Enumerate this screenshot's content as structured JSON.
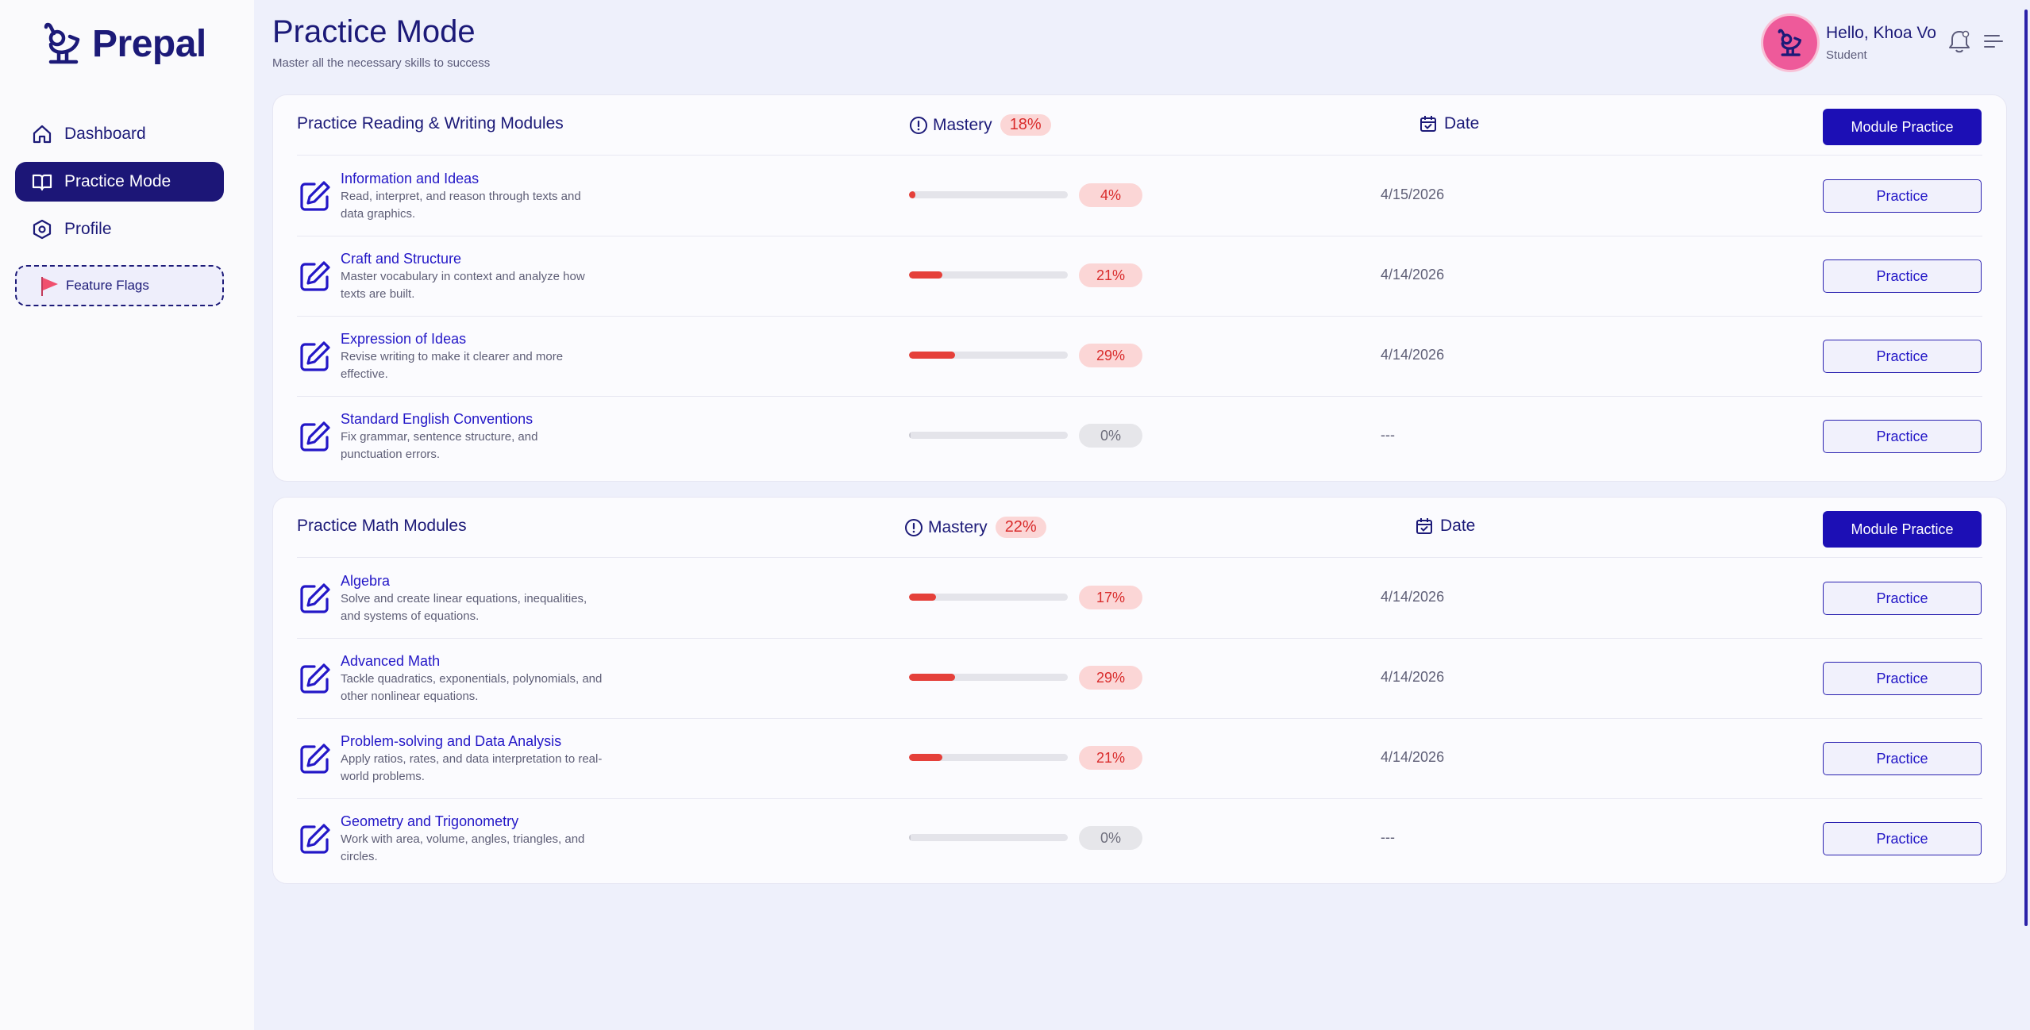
{
  "app": {
    "logo_text": "Prepal"
  },
  "sidebar": {
    "items": [
      {
        "label": "Dashboard",
        "icon": "home-icon",
        "active": false
      },
      {
        "label": "Practice Mode",
        "icon": "book-open-icon",
        "active": true
      },
      {
        "label": "Profile",
        "icon": "hexagon-settings-icon",
        "active": false
      }
    ],
    "feature_flags_label": "Feature Flags"
  },
  "header": {
    "title": "Practice Mode",
    "subtitle": "Master all the necessary skills to success",
    "greeting": "Hello, Khoa Vo",
    "role": "Student"
  },
  "colors": {
    "primary": "#1c1677",
    "accent": "#1c0fb5",
    "danger": "#e5403a",
    "avatar": "#ee5a9a"
  },
  "sections": [
    {
      "title": "Practice Reading & Writing Modules",
      "mastery_label": "Mastery",
      "mastery_value": "18%",
      "date_label": "Date",
      "module_button": "Module Practice",
      "modules": [
        {
          "title": "Information and Ideas",
          "desc": "Read, interpret, and reason through texts and data graphics.",
          "progress": 0.04,
          "pct": "4%",
          "date": "4/15/2026",
          "button": "Practice"
        },
        {
          "title": "Craft and Structure",
          "desc": "Master vocabulary in context and analyze how texts are built.",
          "progress": 0.21,
          "pct": "21%",
          "date": "4/14/2026",
          "button": "Practice"
        },
        {
          "title": "Expression of Ideas",
          "desc": "Revise writing to make it clearer and more effective.",
          "progress": 0.29,
          "pct": "29%",
          "date": "4/14/2026",
          "button": "Practice"
        },
        {
          "title": "Standard English Conventions",
          "desc": "Fix grammar, sentence structure, and punctuation errors.",
          "progress": 0.0,
          "pct": "0%",
          "date": "---",
          "button": "Practice"
        }
      ]
    },
    {
      "title": "Practice Math Modules",
      "mastery_label": "Mastery",
      "mastery_value": "22%",
      "date_label": "Date",
      "module_button": "Module Practice",
      "modules": [
        {
          "title": "Algebra",
          "desc": "Solve and create linear equations, inequalities, and systems of equations.",
          "progress": 0.17,
          "pct": "17%",
          "date": "4/14/2026",
          "button": "Practice"
        },
        {
          "title": "Advanced Math",
          "desc": "Tackle quadratics, exponentials, polynomials, and other nonlinear equations.",
          "progress": 0.29,
          "pct": "29%",
          "date": "4/14/2026",
          "button": "Practice"
        },
        {
          "title": "Problem-solving and Data Analysis",
          "desc": "Apply ratios, rates, and data interpretation to real-world problems.",
          "progress": 0.21,
          "pct": "21%",
          "date": "4/14/2026",
          "button": "Practice"
        },
        {
          "title": "Geometry and Trigonometry",
          "desc": "Work with area, volume, angles, triangles, and circles.",
          "progress": 0.0,
          "pct": "0%",
          "date": "---",
          "button": "Practice"
        }
      ]
    }
  ]
}
